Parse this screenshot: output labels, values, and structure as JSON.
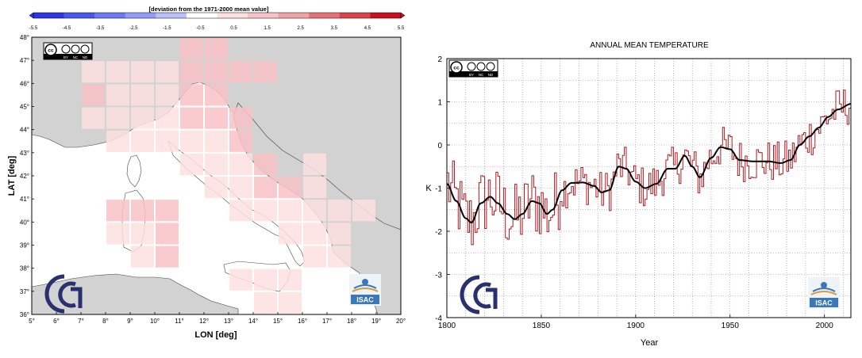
{
  "colorbar": {
    "title": "[deviation from the 1971-2000 mean value]",
    "ticks": [
      "-5.5",
      "-4.5",
      "-3.5",
      "-2.5",
      "-1.5",
      "-0.5",
      "0.5",
      "1.5",
      "2.5",
      "3.5",
      "4.5",
      "5.5"
    ],
    "colors": [
      "#2b35e0",
      "#4b56ea",
      "#6e78f1",
      "#939bf6",
      "#b9bff9",
      "#ffffff",
      "#fde0e2",
      "#f8c2c6",
      "#f1a2a8",
      "#e67178",
      "#d9434c",
      "#c8101e"
    ]
  },
  "license_badge": {
    "label": "cc",
    "items": [
      "BY",
      "NC",
      "ND"
    ]
  },
  "isac_logo": {
    "text": "ISAC"
  },
  "chart_data": [
    {
      "type": "heatmap",
      "title": "",
      "xlabel": "LON [deg]",
      "ylabel": "LAT [deg]",
      "xlim": [
        5,
        20
      ],
      "ylim": [
        36,
        48
      ],
      "x_ticks": [
        "5°",
        "6°",
        "7°",
        "8°",
        "9°",
        "10°",
        "11°",
        "12°",
        "13°",
        "14°",
        "15°",
        "16°",
        "17°",
        "18°",
        "19°",
        "20°"
      ],
      "y_ticks": [
        "36°",
        "37°",
        "38°",
        "39°",
        "40°",
        "41°",
        "42°",
        "43°",
        "44°",
        "45°",
        "46°",
        "47°",
        "48°"
      ],
      "cells": [
        {
          "lon": 11,
          "lat": 47,
          "v": 1.8
        },
        {
          "lon": 12,
          "lat": 47,
          "v": 1.8
        },
        {
          "lon": 7,
          "lat": 46,
          "v": 0.8
        },
        {
          "lon": 8,
          "lat": 46,
          "v": 0.8
        },
        {
          "lon": 9,
          "lat": 46,
          "v": 0.8
        },
        {
          "lon": 10,
          "lat": 46,
          "v": 0.8
        },
        {
          "lon": 11,
          "lat": 46,
          "v": 1.8
        },
        {
          "lon": 12,
          "lat": 46,
          "v": 2.2
        },
        {
          "lon": 13,
          "lat": 46,
          "v": 2.2
        },
        {
          "lon": 14,
          "lat": 46,
          "v": 2.2
        },
        {
          "lon": 7,
          "lat": 45,
          "v": 2.2
        },
        {
          "lon": 8,
          "lat": 45,
          "v": 1.2
        },
        {
          "lon": 9,
          "lat": 45,
          "v": 1.2
        },
        {
          "lon": 10,
          "lat": 45,
          "v": 1.2
        },
        {
          "lon": 11,
          "lat": 45,
          "v": 1.8
        },
        {
          "lon": 12,
          "lat": 45,
          "v": 2.2
        },
        {
          "lon": 7,
          "lat": 44,
          "v": 1.2
        },
        {
          "lon": 8,
          "lat": 44,
          "v": 1.2
        },
        {
          "lon": 9,
          "lat": 44,
          "v": 1.2
        },
        {
          "lon": 10,
          "lat": 44,
          "v": 1.2
        },
        {
          "lon": 11,
          "lat": 44,
          "v": 1.8
        },
        {
          "lon": 12,
          "lat": 44,
          "v": 1.8
        },
        {
          "lon": 13,
          "lat": 44,
          "v": 1.8
        },
        {
          "lon": 8,
          "lat": 43,
          "v": 0.8
        },
        {
          "lon": 9,
          "lat": 43,
          "v": 0.8
        },
        {
          "lon": 10,
          "lat": 43,
          "v": 1.2
        },
        {
          "lon": 11,
          "lat": 43,
          "v": 1.2
        },
        {
          "lon": 12,
          "lat": 43,
          "v": 1.2
        },
        {
          "lon": 13,
          "lat": 43,
          "v": 1.8
        },
        {
          "lon": 11,
          "lat": 42,
          "v": 1.2
        },
        {
          "lon": 12,
          "lat": 42,
          "v": 1.2
        },
        {
          "lon": 13,
          "lat": 42,
          "v": 1.2
        },
        {
          "lon": 14,
          "lat": 42,
          "v": 1.8
        },
        {
          "lon": 16,
          "lat": 42,
          "v": 0.8
        },
        {
          "lon": 12,
          "lat": 41,
          "v": 1.2
        },
        {
          "lon": 13,
          "lat": 41,
          "v": 1.2
        },
        {
          "lon": 14,
          "lat": 41,
          "v": 1.8
        },
        {
          "lon": 15,
          "lat": 41,
          "v": 1.8
        },
        {
          "lon": 16,
          "lat": 41,
          "v": 0.8
        },
        {
          "lon": 8,
          "lat": 40,
          "v": 2.2
        },
        {
          "lon": 9,
          "lat": 40,
          "v": 2.2
        },
        {
          "lon": 10,
          "lat": 40,
          "v": 2.2
        },
        {
          "lon": 13,
          "lat": 40,
          "v": 1.2
        },
        {
          "lon": 14,
          "lat": 40,
          "v": 1.2
        },
        {
          "lon": 15,
          "lat": 40,
          "v": 1.2
        },
        {
          "lon": 16,
          "lat": 40,
          "v": 0.8
        },
        {
          "lon": 17,
          "lat": 40,
          "v": 0.8
        },
        {
          "lon": 18,
          "lat": 40,
          "v": 0.8
        },
        {
          "lon": 8,
          "lat": 39,
          "v": 1.2
        },
        {
          "lon": 9,
          "lat": 39,
          "v": 1.2
        },
        {
          "lon": 10,
          "lat": 39,
          "v": 2.2
        },
        {
          "lon": 15,
          "lat": 39,
          "v": 0.8
        },
        {
          "lon": 16,
          "lat": 39,
          "v": 0.8
        },
        {
          "lon": 17,
          "lat": 39,
          "v": 0.8
        },
        {
          "lon": 9,
          "lat": 38,
          "v": 1.2
        },
        {
          "lon": 10,
          "lat": 38,
          "v": 2.2
        },
        {
          "lon": 16,
          "lat": 38,
          "v": 0.8
        },
        {
          "lon": 17,
          "lat": 38,
          "v": 0.8
        },
        {
          "lon": 13,
          "lat": 37,
          "v": 0.8
        },
        {
          "lon": 14,
          "lat": 37,
          "v": 0.8
        },
        {
          "lon": 15,
          "lat": 37,
          "v": 0.8
        },
        {
          "lon": 14,
          "lat": 36,
          "v": 0.8
        },
        {
          "lon": 15,
          "lat": 36,
          "v": 0.8
        }
      ]
    },
    {
      "type": "line",
      "title": "ANNUAL MEAN TEMPERATURE",
      "xlabel": "Year",
      "ylabel": "K",
      "xlim": [
        1800,
        2014
      ],
      "ylim": [
        -4,
        2
      ],
      "x_ticks": [
        1800,
        1850,
        1900,
        1950,
        2000
      ],
      "y_ticks": [
        -4,
        -3,
        -2,
        -1,
        0,
        1,
        2
      ],
      "grid": true,
      "smooth_anchors": [
        {
          "x": 1800,
          "y": -0.9
        },
        {
          "x": 1805,
          "y": -1.3
        },
        {
          "x": 1810,
          "y": -1.7
        },
        {
          "x": 1813,
          "y": -1.8
        },
        {
          "x": 1818,
          "y": -1.35
        },
        {
          "x": 1823,
          "y": -1.2
        },
        {
          "x": 1827,
          "y": -1.35
        },
        {
          "x": 1832,
          "y": -1.6
        },
        {
          "x": 1836,
          "y": -1.72
        },
        {
          "x": 1840,
          "y": -1.6
        },
        {
          "x": 1845,
          "y": -1.3
        },
        {
          "x": 1849,
          "y": -1.35
        },
        {
          "x": 1853,
          "y": -1.6
        },
        {
          "x": 1856,
          "y": -1.5
        },
        {
          "x": 1861,
          "y": -1.05
        },
        {
          "x": 1866,
          "y": -0.88
        },
        {
          "x": 1872,
          "y": -0.87
        },
        {
          "x": 1878,
          "y": -0.95
        },
        {
          "x": 1882,
          "y": -1.1
        },
        {
          "x": 1886,
          "y": -1.05
        },
        {
          "x": 1891,
          "y": -0.5
        },
        {
          "x": 1895,
          "y": -0.55
        },
        {
          "x": 1900,
          "y": -0.85
        },
        {
          "x": 1905,
          "y": -1.0
        },
        {
          "x": 1911,
          "y": -0.9
        },
        {
          "x": 1917,
          "y": -0.55
        },
        {
          "x": 1921,
          "y": -0.55
        },
        {
          "x": 1926,
          "y": -0.25
        },
        {
          "x": 1930,
          "y": -0.5
        },
        {
          "x": 1934,
          "y": -0.75
        },
        {
          "x": 1940,
          "y": -0.3
        },
        {
          "x": 1945,
          "y": -0.05
        },
        {
          "x": 1950,
          "y": -0.1
        },
        {
          "x": 1955,
          "y": -0.35
        },
        {
          "x": 1962,
          "y": -0.38
        },
        {
          "x": 1970,
          "y": -0.38
        },
        {
          "x": 1977,
          "y": -0.42
        },
        {
          "x": 1982,
          "y": -0.35
        },
        {
          "x": 1987,
          "y": 0.0
        },
        {
          "x": 1992,
          "y": 0.2
        },
        {
          "x": 1997,
          "y": 0.4
        },
        {
          "x": 2002,
          "y": 0.65
        },
        {
          "x": 2007,
          "y": 0.82
        },
        {
          "x": 2014,
          "y": 0.95
        }
      ]
    }
  ]
}
